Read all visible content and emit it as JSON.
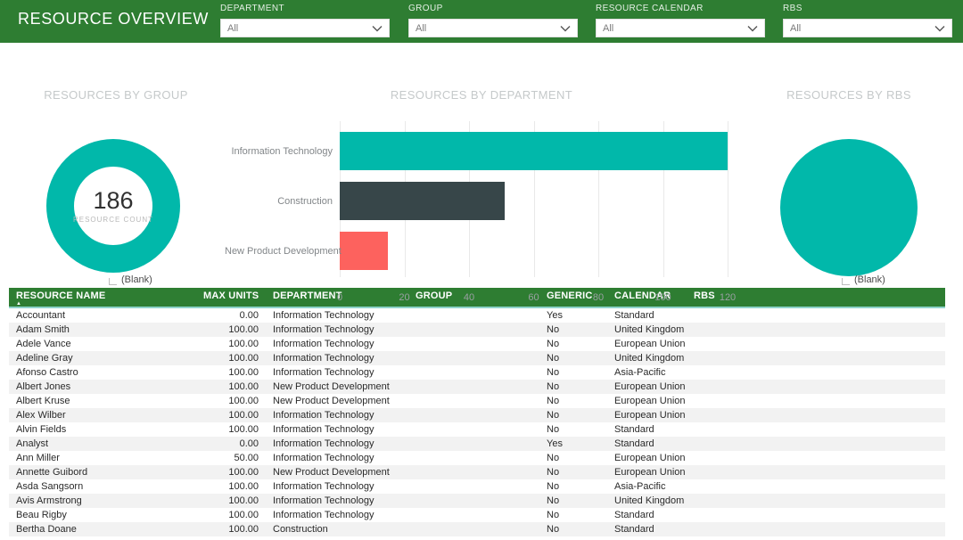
{
  "header": {
    "title": "RESOURCE OVERVIEW",
    "filters": [
      {
        "label": "DEPARTMENT",
        "value": "All"
      },
      {
        "label": "GROUP",
        "value": "All"
      },
      {
        "label": "RESOURCE CALENDAR",
        "value": "All"
      },
      {
        "label": "RBS",
        "value": "All"
      }
    ]
  },
  "colors": {
    "theme_green": "#2e7d32",
    "teal": "#01b8aa",
    "dark_gray": "#374649",
    "coral": "#fd625e"
  },
  "chart_data": [
    {
      "type": "pie",
      "variant": "donut",
      "title": "RESOURCES BY GROUP",
      "categories": [
        "(Blank)"
      ],
      "values": [
        186
      ],
      "center_value": "186",
      "center_label": "RESOURCE COUNT",
      "legend_position": "bottom",
      "color": "#01b8aa"
    },
    {
      "type": "bar",
      "orientation": "horizontal",
      "title": "RESOURCES BY DEPARTMENT",
      "categories": [
        "Information Technology",
        "Construction",
        "New Product Development"
      ],
      "values": [
        120,
        51,
        15
      ],
      "colors": [
        "#01b8aa",
        "#374649",
        "#fd625e"
      ],
      "xlim": [
        0,
        120
      ],
      "xticks": [
        0,
        20,
        40,
        60,
        80,
        100,
        120
      ],
      "grid": true
    },
    {
      "type": "pie",
      "title": "RESOURCES BY RBS",
      "categories": [
        "(Blank)"
      ],
      "values": [
        186
      ],
      "legend_position": "bottom",
      "color": "#01b8aa"
    }
  ],
  "table": {
    "columns": [
      "RESOURCE NAME",
      "MAX UNITS",
      "DEPARTMENT",
      "GROUP",
      "GENERIC",
      "CALENDAR",
      "RBS"
    ],
    "sorted_by": "RESOURCE NAME",
    "sort_direction": "asc",
    "rows": [
      [
        "Accountant",
        "0.00",
        "Information Technology",
        "",
        "Yes",
        "Standard",
        ""
      ],
      [
        "Adam Smith",
        "100.00",
        "Information Technology",
        "",
        "No",
        "United Kingdom",
        ""
      ],
      [
        "Adele Vance",
        "100.00",
        "Information Technology",
        "",
        "No",
        "European Union",
        ""
      ],
      [
        "Adeline Gray",
        "100.00",
        "Information Technology",
        "",
        "No",
        "United Kingdom",
        ""
      ],
      [
        "Afonso Castro",
        "100.00",
        "Information Technology",
        "",
        "No",
        "Asia-Pacific",
        ""
      ],
      [
        "Albert Jones",
        "100.00",
        "New Product Development",
        "",
        "No",
        "European Union",
        ""
      ],
      [
        "Albert Kruse",
        "100.00",
        "New Product Development",
        "",
        "No",
        "European Union",
        ""
      ],
      [
        "Alex Wilber",
        "100.00",
        "Information Technology",
        "",
        "No",
        "European Union",
        ""
      ],
      [
        "Alvin Fields",
        "100.00",
        "Information Technology",
        "",
        "No",
        "Standard",
        ""
      ],
      [
        "Analyst",
        "0.00",
        "Information Technology",
        "",
        "Yes",
        "Standard",
        ""
      ],
      [
        "Ann Miller",
        "50.00",
        "Information Technology",
        "",
        "No",
        "European Union",
        ""
      ],
      [
        "Annette Guibord",
        "100.00",
        "New Product Development",
        "",
        "No",
        "European Union",
        ""
      ],
      [
        "Asda Sangsorn",
        "100.00",
        "Information Technology",
        "",
        "No",
        "Asia-Pacific",
        ""
      ],
      [
        "Avis Armstrong",
        "100.00",
        "Information Technology",
        "",
        "No",
        "United Kingdom",
        ""
      ],
      [
        "Beau Rigby",
        "100.00",
        "Information Technology",
        "",
        "No",
        "Standard",
        ""
      ],
      [
        "Bertha Doane",
        "100.00",
        "Construction",
        "",
        "No",
        "Standard",
        ""
      ]
    ]
  }
}
